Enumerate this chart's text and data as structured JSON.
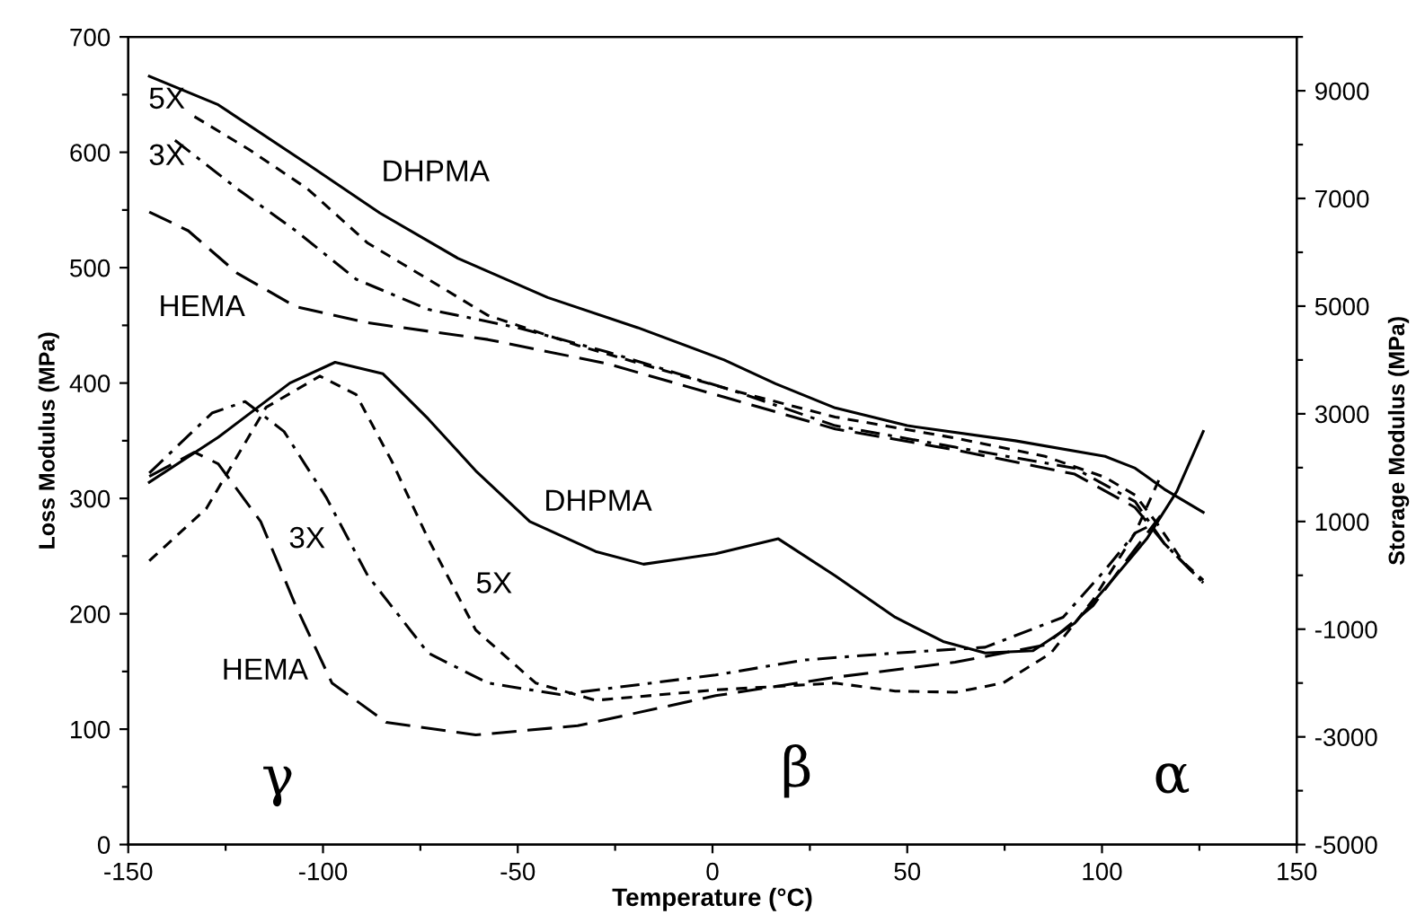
{
  "chart_data": {
    "type": "line",
    "xlabel": "Temperature (°C)",
    "ylabel": "Loss Modulus (MPa)",
    "y2label": "Storage Modulus (MPa)",
    "xlim": [
      -150,
      150
    ],
    "xticks": [
      -150,
      {
        "value": -125,
        "label": null
      },
      -100,
      {
        "value": -75,
        "label": null
      },
      -50,
      {
        "value": -25,
        "label": null
      },
      0,
      {
        "value": 25,
        "label": null
      },
      50,
      {
        "value": 75,
        "label": null
      },
      100,
      {
        "value": 125,
        "label": null
      },
      150
    ],
    "ylim": [
      0,
      700
    ],
    "yticks": [
      0,
      {
        "value": 50,
        "label": null
      },
      100,
      {
        "value": 150,
        "label": null
      },
      200,
      {
        "value": 250,
        "label": null
      },
      300,
      {
        "value": 350,
        "label": null
      },
      400,
      {
        "value": 450,
        "label": null
      },
      500,
      {
        "value": 550,
        "label": null
      },
      600,
      {
        "value": 650,
        "label": null
      },
      700
    ],
    "y2lim": [
      -5000,
      10000
    ],
    "y2ticks": [
      -5000,
      {
        "value": -4000,
        "label": null
      },
      -3000,
      {
        "value": -2000,
        "label": null
      },
      -1000,
      {
        "value": 0,
        "label": null
      },
      1000,
      {
        "value": 2000,
        "label": null
      },
      3000,
      {
        "value": 4000,
        "label": null
      },
      5000,
      {
        "value": 6000,
        "label": null
      },
      7000,
      {
        "value": 8000,
        "label": null
      },
      9000,
      {
        "value": 10000,
        "label": null
      }
    ],
    "grid": false,
    "legend": false,
    "marker": "none",
    "series": [
      {
        "color": "#000000",
        "line_style": "solid",
        "axis": "y2",
        "x": [
          -144.6,
          -126.9,
          -103.8,
          -85.4,
          -65.4,
          -42.3,
          -19.2,
          3,
          16.2,
          31.5,
          50,
          77.7,
          100.8,
          108.5,
          116,
          126
        ],
        "values": [
          9270,
          8740,
          7630,
          6730,
          5890,
          5160,
          4600,
          4000,
          3560,
          3110,
          2780,
          2500,
          2210,
          1990,
          1600,
          1170
        ]
      },
      {
        "color": "#000000",
        "line_style": "dashed",
        "axis": "y2",
        "x": [
          -133,
          -119,
          -104,
          -88.5,
          -73,
          -57.7,
          -34.6,
          5.4,
          31.5,
          62.3,
          85.4,
          100.8,
          108.5,
          114.6,
          120.8,
          126
        ],
        "values": [
          8520,
          7910,
          7180,
          6170,
          5500,
          4830,
          4270,
          3430,
          2940,
          2550,
          2210,
          1820,
          1490,
          920,
          250,
          -90
        ]
      },
      {
        "color": "#000000",
        "line_style": "dashdot",
        "axis": "y2",
        "x": [
          -138,
          -122,
          -107,
          -91.5,
          -73,
          -50,
          -27,
          5.4,
          31.5,
          62.3,
          93,
          108.5,
          116,
          126
        ],
        "values": [
          8080,
          7180,
          6400,
          5500,
          4940,
          4600,
          4150,
          3430,
          2780,
          2380,
          1990,
          1370,
          590,
          -140
        ]
      },
      {
        "color": "#000000",
        "line_style": "longdash",
        "axis": "y2",
        "x": [
          -144.6,
          -134.6,
          -122,
          -107,
          -88.5,
          -57.7,
          -27,
          5.4,
          31.5,
          62.3,
          93,
          108.5,
          116,
          126
        ],
        "values": [
          6750,
          6400,
          5610,
          4990,
          4690,
          4380,
          3930,
          3260,
          2720,
          2330,
          1880,
          1260,
          590,
          -140
        ]
      },
      {
        "color": "#000000",
        "line_style": "solid",
        "x": [
          -144.6,
          -126.9,
          -108.5,
          -96.9,
          -84.6,
          -73,
          -60.8,
          -46.9,
          -30,
          -17.7,
          0.8,
          16.9,
          31.5,
          46.9,
          59.2,
          70,
          82.3,
          93,
          102.3,
          111.5,
          119.2,
          126
        ],
        "values": [
          314,
          353,
          400,
          418,
          408,
          369,
          324,
          280,
          254,
          243,
          252,
          265,
          233,
          197,
          176,
          166,
          168,
          192,
          228,
          265,
          306,
          358
        ]
      },
      {
        "color": "#000000",
        "line_style": "dashed",
        "x": [
          -144.6,
          -130,
          -114.6,
          -100.8,
          -91.5,
          -82.3,
          -73,
          -60.8,
          -45.4,
          -30,
          0.8,
          31.5,
          46.9,
          62.3,
          74.6,
          86.9,
          97.7,
          108.5,
          115
        ],
        "values": [
          246,
          291,
          379,
          406,
          390,
          332,
          265,
          186,
          140,
          125,
          134,
          140,
          133,
          132,
          140,
          166,
          212,
          270,
          319
        ]
      },
      {
        "color": "#000000",
        "line_style": "dashdot",
        "x": [
          -144.6,
          -128.5,
          -120,
          -110,
          -99.2,
          -88.5,
          -73,
          -57.7,
          -39.2,
          0.8,
          23.8,
          46.9,
          70,
          90,
          100.8,
          108.5,
          111.5
        ],
        "values": [
          322,
          374,
          384,
          358,
          301,
          233,
          166,
          140,
          130,
          147,
          160,
          166,
          171,
          197,
          238,
          270,
          275
        ]
      },
      {
        "color": "#000000",
        "line_style": "longdash",
        "x": [
          -144.6,
          -133,
          -126.9,
          -116,
          -107,
          -97.7,
          -83.8,
          -60.8,
          -34.6,
          0.8,
          31.5,
          62.3,
          85.4,
          97.7,
          106.9,
          115
        ],
        "values": [
          319,
          340,
          330,
          280,
          207,
          140,
          106,
          95,
          103,
          129,
          145,
          158,
          173,
          207,
          249,
          285
        ]
      }
    ],
    "annotations": [
      "5X",
      "3X",
      "DHPMA",
      "HEMA",
      "DHPMA",
      "3X",
      "5X",
      "HEMA",
      "γ",
      "β",
      "α"
    ]
  }
}
